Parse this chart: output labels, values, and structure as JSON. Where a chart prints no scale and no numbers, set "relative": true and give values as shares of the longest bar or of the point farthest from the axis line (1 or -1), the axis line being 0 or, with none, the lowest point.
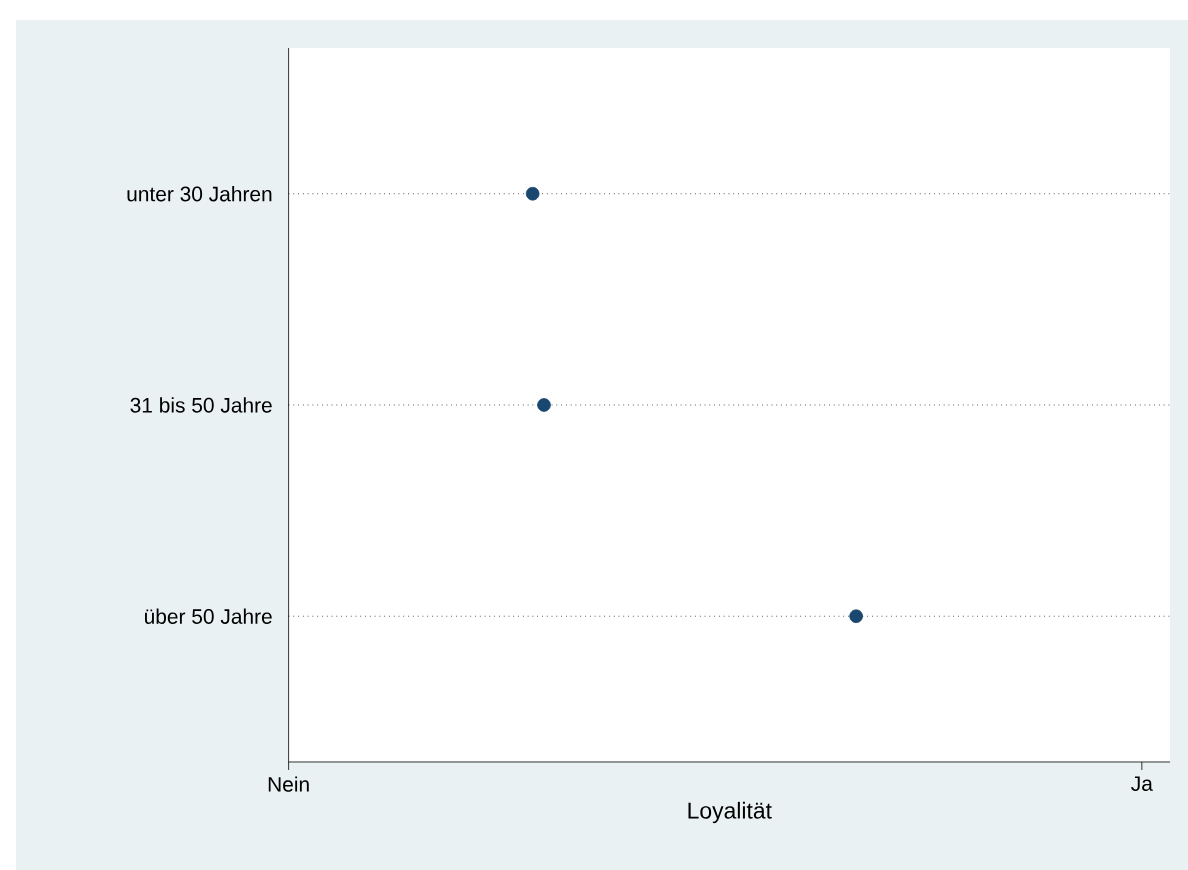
{
  "chart_data": {
    "type": "scatter",
    "orientation": "horizontal",
    "relative": true,
    "categories": [
      "unter 30 Jahren",
      "31 bis 50 Jahre",
      "über 50 Jahre"
    ],
    "values": [
      0.43,
      0.45,
      1
    ],
    "color": "#1a476f",
    "xlabel": "Loyalität",
    "annotations": [
      "Nein",
      "Ja"
    ],
    "grid": "y"
  }
}
